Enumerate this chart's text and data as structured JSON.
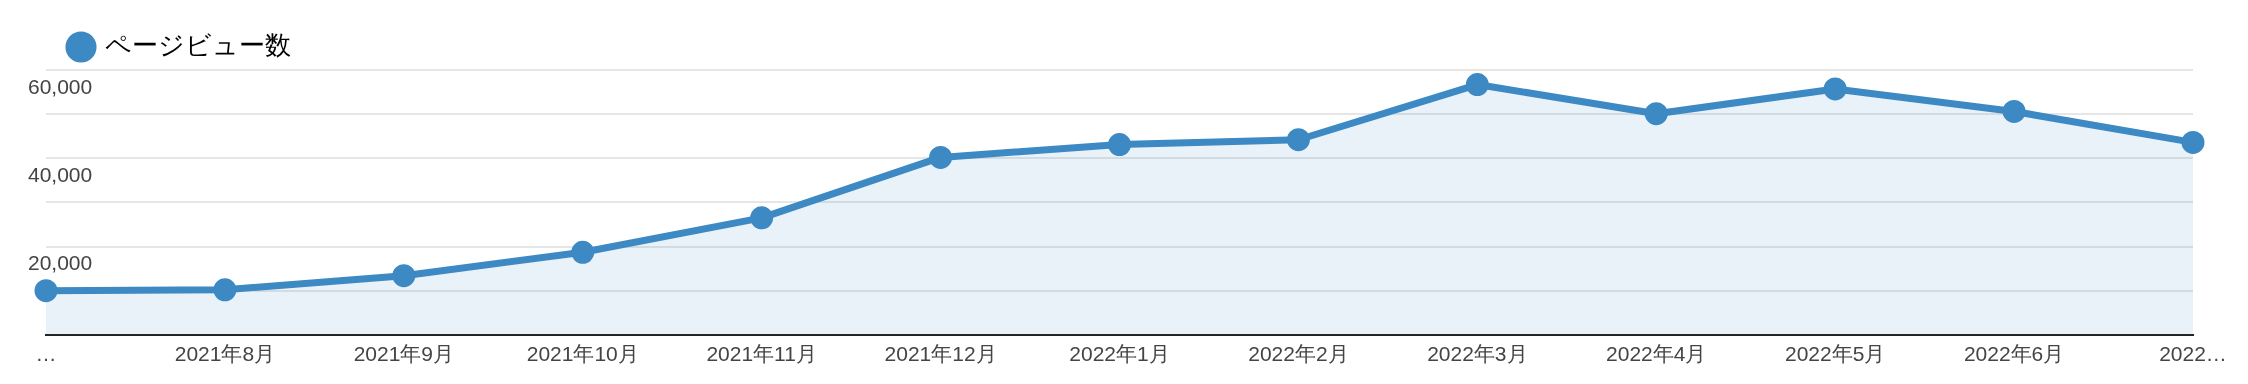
{
  "chart_data": {
    "type": "area",
    "categories": [
      "…",
      "2021年8月",
      "2021年9月",
      "2021年10月",
      "2021年11月",
      "2021年12月",
      "2022年1月",
      "2022年2月",
      "2022年3月",
      "2022年4月",
      "2022年5月",
      "2022年6月",
      "2022…"
    ],
    "series": [
      {
        "name": "ページビュー数",
        "color": "#3d89c4",
        "values": [
          10000,
          10200,
          13400,
          18700,
          26500,
          40200,
          43100,
          44200,
          56700,
          50100,
          55700,
          50600,
          43600
        ]
      }
    ],
    "ylim": [
      0,
      60000
    ],
    "yticks": [
      {
        "value": 0,
        "label": null
      },
      {
        "value": 10000,
        "label": null
      },
      {
        "value": 20000,
        "label": "20,000"
      },
      {
        "value": 30000,
        "label": null
      },
      {
        "value": 40000,
        "label": "40,000"
      },
      {
        "value": 50000,
        "label": null
      },
      {
        "value": 60000,
        "label": "60,000"
      }
    ],
    "grid": "y",
    "legend": "top left",
    "marker": "circle"
  }
}
